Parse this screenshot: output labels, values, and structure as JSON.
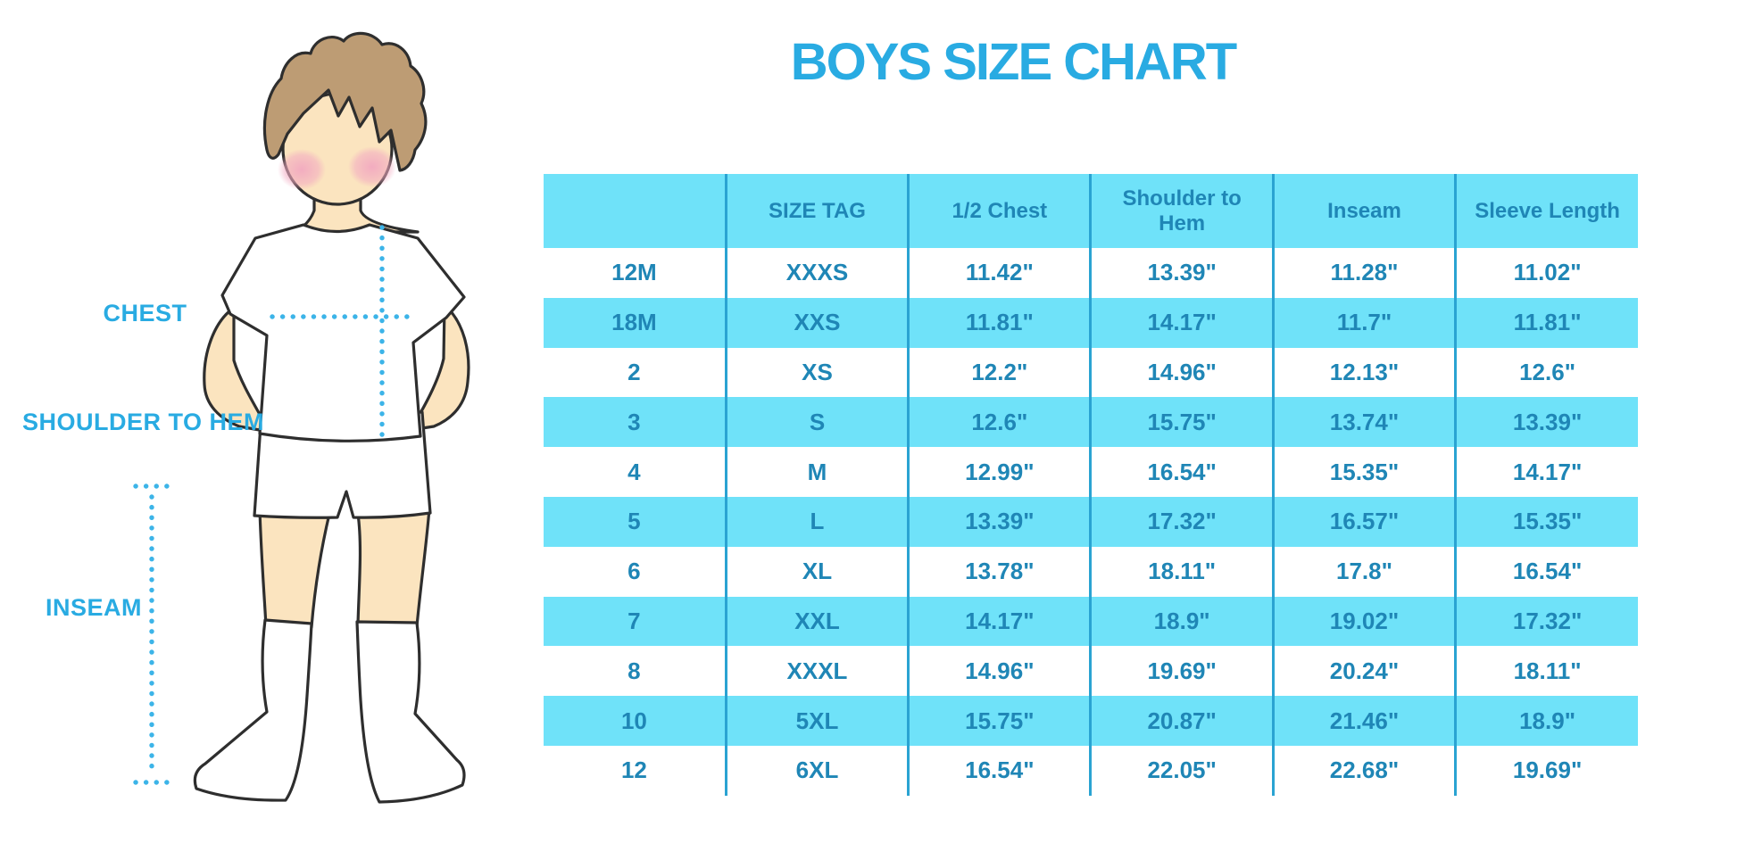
{
  "title": "BOYS SIZE CHART",
  "illustration": {
    "labels": {
      "chest": "CHEST",
      "shoulder_to_hem": "SHOULDER TO HEM",
      "inseam": "INSEAM"
    }
  },
  "colors": {
    "title_blue": "#29abe2",
    "label_blue": "#29abe2",
    "dotted_line_blue": "#3cb4e8",
    "table_fill_cyan": "#6fe2f9",
    "table_line_blue": "#2aa3d2",
    "table_text_blue": "#1f86b6",
    "skin": "#fbe4bf",
    "hair": "#bd9c74",
    "blush": "#f2a9c0"
  },
  "chart_data": {
    "type": "table",
    "title": "BOYS SIZE CHART",
    "columns": [
      "",
      "SIZE TAG",
      "1/2 Chest",
      "Shoulder to Hem",
      "Inseam",
      "Sleeve Length"
    ],
    "rows": [
      [
        "12M",
        "XXXS",
        "11.42\"",
        "13.39\"",
        "11.28\"",
        "11.02\""
      ],
      [
        "18M",
        "XXS",
        "11.81\"",
        "14.17\"",
        "11.7\"",
        "11.81\""
      ],
      [
        "2",
        "XS",
        "12.2\"",
        "14.96\"",
        "12.13\"",
        "12.6\""
      ],
      [
        "3",
        "S",
        "12.6\"",
        "15.75\"",
        "13.74\"",
        "13.39\""
      ],
      [
        "4",
        "M",
        "12.99\"",
        "16.54\"",
        "15.35\"",
        "14.17\""
      ],
      [
        "5",
        "L",
        "13.39\"",
        "17.32\"",
        "16.57\"",
        "15.35\""
      ],
      [
        "6",
        "XL",
        "13.78\"",
        "18.11\"",
        "17.8\"",
        "16.54\""
      ],
      [
        "7",
        "XXL",
        "14.17\"",
        "18.9\"",
        "19.02\"",
        "17.32\""
      ],
      [
        "8",
        "XXXL",
        "14.96\"",
        "19.69\"",
        "20.24\"",
        "18.11\""
      ],
      [
        "10",
        "5XL",
        "15.75\"",
        "20.87\"",
        "21.46\"",
        "18.9\""
      ],
      [
        "12",
        "6XL",
        "16.54\"",
        "22.05\"",
        "22.68\"",
        "19.69\""
      ]
    ]
  }
}
